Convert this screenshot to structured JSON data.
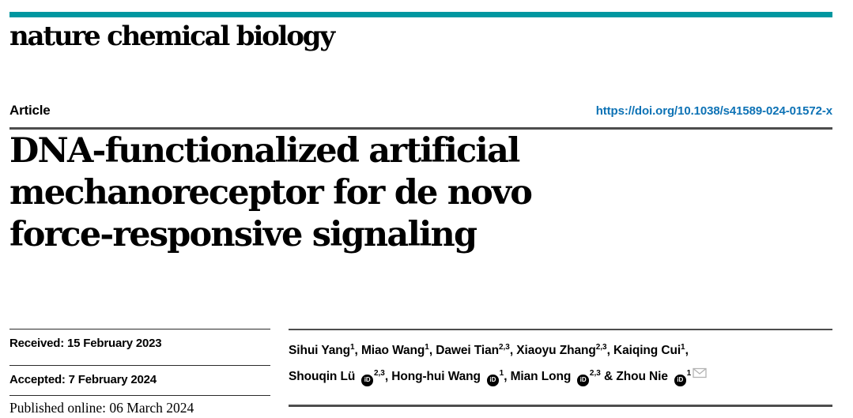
{
  "colors": {
    "accent": "#0097a0",
    "doi_blue": "#0d72b5",
    "rule_heavy": "#4d4d4d",
    "rule_thin": "#2b2b2b"
  },
  "masthead": {
    "journal": "nature chemical biology"
  },
  "article_header": {
    "label": "Article",
    "doi": "https://doi.org/10.1038/s41589-024-01572-x"
  },
  "title": {
    "lines": {
      "0": "DNA-functionalized artificial",
      "1": "mechanoreceptor for de novo",
      "2": "force-responsive signaling"
    }
  },
  "dates": {
    "received": "Received: 15 February 2023",
    "accepted": "Accepted: 7 February 2024",
    "published": "Published online: 06 March 2024"
  },
  "authors": {
    "orcid_glyph": "iD",
    "list": [
      {
        "name": "Sihui Yang",
        "sup": "1",
        "orcid": false,
        "email": false,
        "sep": ", ",
        "break_after": false
      },
      {
        "name": "Miao Wang",
        "sup": "1",
        "orcid": false,
        "email": false,
        "sep": ", ",
        "break_after": false
      },
      {
        "name": "Dawei Tian",
        "sup": "2,3",
        "orcid": false,
        "email": false,
        "sep": ", ",
        "break_after": false
      },
      {
        "name": "Xiaoyu Zhang",
        "sup": "2,3",
        "orcid": false,
        "email": false,
        "sep": ", ",
        "break_after": false
      },
      {
        "name": "Kaiqing Cui",
        "sup": "1",
        "orcid": false,
        "email": false,
        "sep": ",",
        "break_after": true
      },
      {
        "name": "Shouqin Lü",
        "sup": "2,3",
        "orcid": true,
        "email": false,
        "sep": ", ",
        "break_after": false
      },
      {
        "name": "Hong-hui Wang",
        "sup": "1",
        "orcid": true,
        "email": false,
        "sep": ", ",
        "break_after": false
      },
      {
        "name": "Mian Long",
        "sup": "2,3",
        "orcid": true,
        "email": false,
        "sep": " & ",
        "break_after": false
      },
      {
        "name": "Zhou Nie",
        "sup": "1",
        "orcid": true,
        "email": true,
        "sep": "",
        "break_after": false
      }
    ]
  }
}
